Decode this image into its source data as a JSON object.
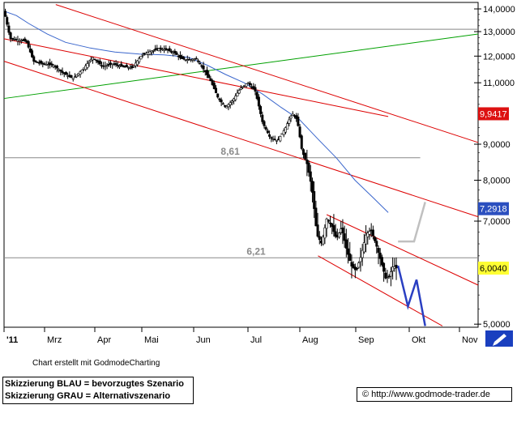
{
  "chart_data": {
    "type": "candlestick",
    "y_scale": "log",
    "ylim": [
      4950,
      14300
    ],
    "x_months": [
      "'11",
      "Mrz",
      "Apr",
      "Mai",
      "Jun",
      "Jul",
      "Aug",
      "Sep",
      "Okt",
      "Nov"
    ],
    "y_ticks": [
      "14,0000",
      "13,0000",
      "12,0000",
      "11,0000",
      "9,0000",
      "8,0000",
      "7,0000",
      "5,0000"
    ],
    "price_points": [
      {
        "d": 0,
        "v": 13900
      },
      {
        "d": 5,
        "v": 12700
      },
      {
        "d": 12,
        "v": 12650
      },
      {
        "d": 18,
        "v": 12600
      },
      {
        "d": 24,
        "v": 11800
      },
      {
        "d": 32,
        "v": 11700
      },
      {
        "d": 40,
        "v": 11650
      },
      {
        "d": 48,
        "v": 11350
      },
      {
        "d": 56,
        "v": 11150
      },
      {
        "d": 64,
        "v": 11500
      },
      {
        "d": 72,
        "v": 11950
      },
      {
        "d": 80,
        "v": 11600
      },
      {
        "d": 88,
        "v": 11700
      },
      {
        "d": 96,
        "v": 11600
      },
      {
        "d": 104,
        "v": 11550
      },
      {
        "d": 112,
        "v": 12050
      },
      {
        "d": 120,
        "v": 12200
      },
      {
        "d": 126,
        "v": 12300
      },
      {
        "d": 132,
        "v": 12250
      },
      {
        "d": 138,
        "v": 12150
      },
      {
        "d": 144,
        "v": 11900
      },
      {
        "d": 150,
        "v": 11850
      },
      {
        "d": 156,
        "v": 11900
      },
      {
        "d": 162,
        "v": 11500
      },
      {
        "d": 168,
        "v": 11050
      },
      {
        "d": 174,
        "v": 10450
      },
      {
        "d": 180,
        "v": 10150
      },
      {
        "d": 186,
        "v": 10400
      },
      {
        "d": 192,
        "v": 10800
      },
      {
        "d": 198,
        "v": 11000
      },
      {
        "d": 204,
        "v": 10700
      },
      {
        "d": 210,
        "v": 9650
      },
      {
        "d": 216,
        "v": 9200
      },
      {
        "d": 222,
        "v": 9100
      },
      {
        "d": 228,
        "v": 9450
      },
      {
        "d": 234,
        "v": 9950
      },
      {
        "d": 238,
        "v": 9750
      },
      {
        "d": 242,
        "v": 8800
      },
      {
        "d": 246,
        "v": 8450
      },
      {
        "d": 250,
        "v": 7800
      },
      {
        "d": 254,
        "v": 6700
      },
      {
        "d": 258,
        "v": 6500
      },
      {
        "d": 262,
        "v": 7050
      },
      {
        "d": 266,
        "v": 6900
      },
      {
        "d": 270,
        "v": 6600
      },
      {
        "d": 274,
        "v": 6850
      },
      {
        "d": 278,
        "v": 6400
      },
      {
        "d": 282,
        "v": 6050
      },
      {
        "d": 286,
        "v": 5950
      },
      {
        "d": 290,
        "v": 6250
      },
      {
        "d": 294,
        "v": 6700
      },
      {
        "d": 298,
        "v": 6800
      },
      {
        "d": 302,
        "v": 6500
      },
      {
        "d": 306,
        "v": 6150
      },
      {
        "d": 310,
        "v": 5800
      },
      {
        "d": 313,
        "v": 5850
      },
      {
        "d": 316,
        "v": 6050
      },
      {
        "d": 319,
        "v": 6000
      }
    ],
    "moving_average": [
      {
        "d": 0,
        "v": 13900
      },
      {
        "d": 10,
        "v": 13700
      },
      {
        "d": 20,
        "v": 13350
      },
      {
        "d": 35,
        "v": 12900
      },
      {
        "d": 50,
        "v": 12550
      },
      {
        "d": 70,
        "v": 12320
      },
      {
        "d": 90,
        "v": 12160
      },
      {
        "d": 110,
        "v": 12080
      },
      {
        "d": 130,
        "v": 12050
      },
      {
        "d": 150,
        "v": 11950
      },
      {
        "d": 165,
        "v": 11650
      },
      {
        "d": 180,
        "v": 11300
      },
      {
        "d": 195,
        "v": 11000
      },
      {
        "d": 210,
        "v": 10600
      },
      {
        "d": 225,
        "v": 10150
      },
      {
        "d": 240,
        "v": 9750
      },
      {
        "d": 255,
        "v": 9150
      },
      {
        "d": 270,
        "v": 8600
      },
      {
        "d": 285,
        "v": 8000
      },
      {
        "d": 300,
        "v": 7550
      },
      {
        "d": 312,
        "v": 7200
      }
    ],
    "horizontal_levels": [
      {
        "value": 13100,
        "label": ""
      },
      {
        "value": 8610,
        "label": "8,61"
      },
      {
        "value": 6210,
        "label": "6,21"
      }
    ],
    "trendlines": [
      {
        "color": "#00a000",
        "from": {
          "d": 0,
          "v": 10450
        },
        "to": {
          "d": 385,
          "v": 12900
        }
      },
      {
        "color": "#dd0000",
        "from": {
          "d": 0,
          "v": 12700
        },
        "to": {
          "d": 312,
          "v": 9850
        }
      },
      {
        "color": "#dd0000",
        "from": {
          "d": 42,
          "v": 14200
        },
        "to": {
          "d": 385,
          "v": 9050
        }
      },
      {
        "color": "#dd0000",
        "from": {
          "d": 0,
          "v": 11800
        },
        "to": {
          "d": 385,
          "v": 7100
        }
      },
      {
        "color": "#dd0000",
        "from": {
          "d": 262,
          "v": 7150
        },
        "to": {
          "d": 385,
          "v": 5680
        }
      },
      {
        "color": "#dd0000",
        "from": {
          "d": 255,
          "v": 6250
        },
        "to": {
          "d": 356,
          "v": 4970
        }
      }
    ],
    "scenario_blue": [
      {
        "d": 320,
        "v": 6050
      },
      {
        "d": 328,
        "v": 5300
      },
      {
        "d": 335,
        "v": 5780
      },
      {
        "d": 342,
        "v": 4970
      }
    ],
    "scenario_gray": [
      {
        "d": 320,
        "v": 6550
      },
      {
        "d": 333,
        "v": 6550
      },
      {
        "d": 342,
        "v": 7450
      }
    ],
    "price_badges": [
      {
        "text": "9,9417",
        "value": 9940,
        "bg": "#dd1111",
        "fg": "#ffffff"
      },
      {
        "text": "7,2918",
        "value": 7290,
        "bg": "#2b4fbf",
        "fg": "#ffffff"
      },
      {
        "text": "6,0040",
        "value": 6004,
        "bg": "#ffff33",
        "fg": "#000000"
      }
    ]
  },
  "colors": {
    "candle_up": "#ffffff",
    "candle_down": "#000000",
    "moving_average": "#3a66cc",
    "level_line": "#888888",
    "scenario_blue": "#2a3fc2",
    "scenario_gray": "#c0c0c0"
  },
  "footer": {
    "credit": "Chart erstellt mit GodmodeCharting",
    "legend_blue": "Skizzierung BLAU = bevorzugtes Szenario",
    "legend_gray": "Skizzierung GRAU = Alternativszenario",
    "url": "© http://www.godmode-trader.de"
  },
  "icons": {
    "corner": "pencil-icon"
  }
}
